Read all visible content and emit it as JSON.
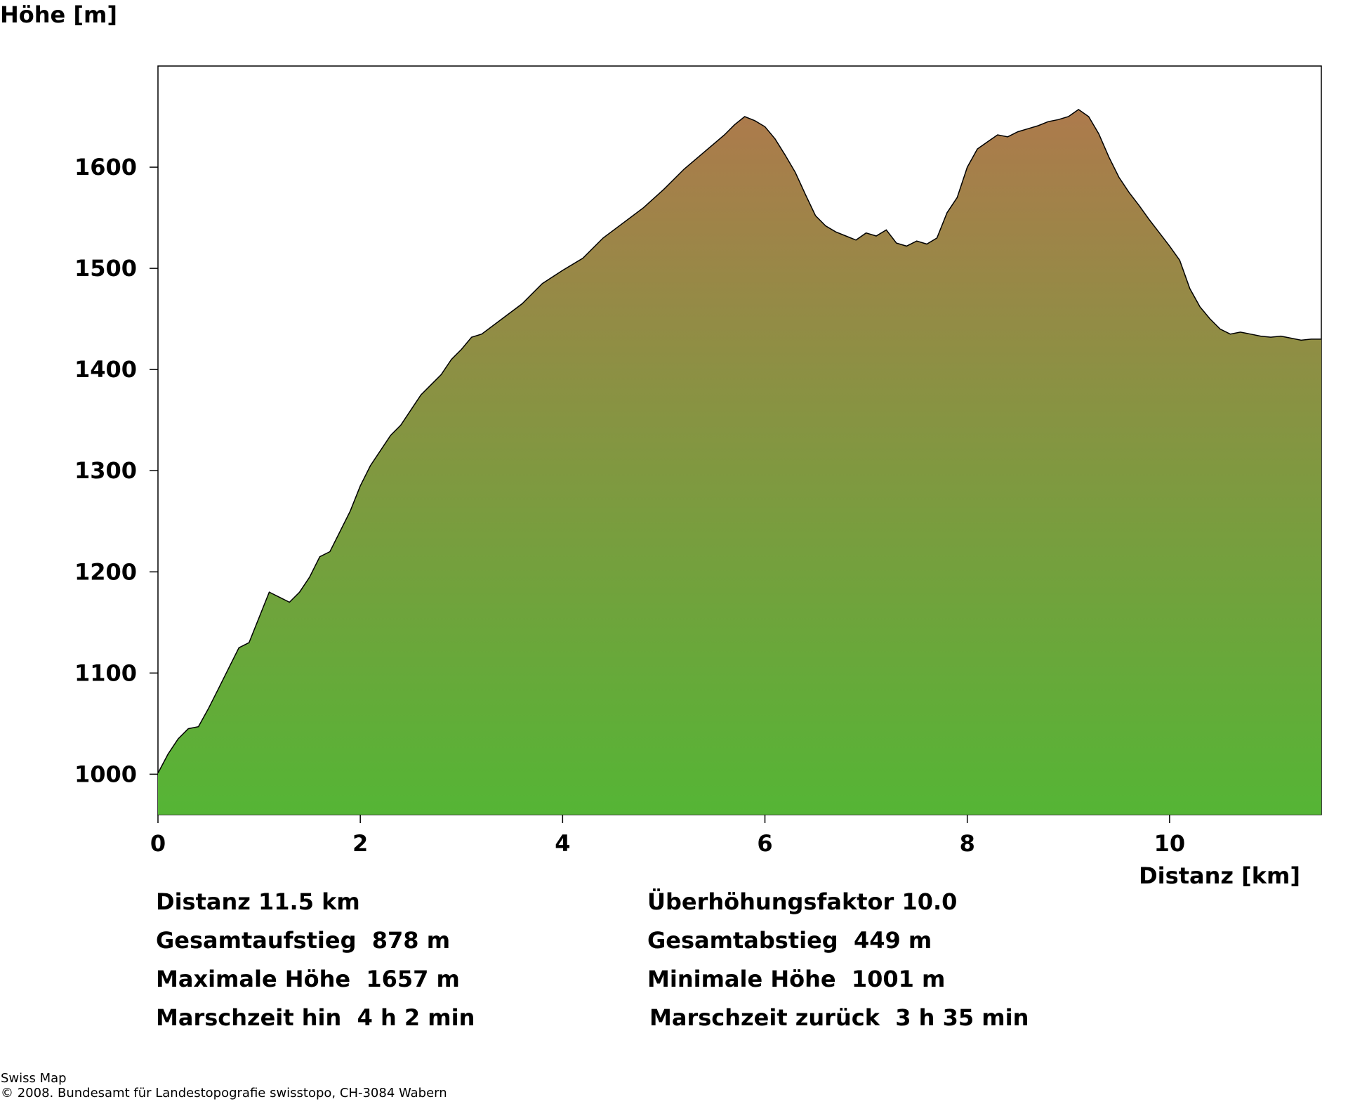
{
  "chart_data": {
    "type": "area",
    "ylabel": "Höhe [m]",
    "xlabel": "Distanz [km]",
    "xlim": [
      0,
      11.5
    ],
    "ylim": [
      960,
      1700
    ],
    "xticks": [
      0,
      2,
      4,
      6,
      8,
      10
    ],
    "yticks": [
      1000,
      1100,
      1200,
      1300,
      1400,
      1500,
      1600
    ],
    "grid": false,
    "legend": "none",
    "gradient_colors": {
      "top": "#ad7a4c",
      "bottom": "#55b535"
    },
    "x": [
      0,
      0.1,
      0.2,
      0.3,
      0.4,
      0.5,
      0.6,
      0.7,
      0.8,
      0.9,
      1.0,
      1.1,
      1.2,
      1.3,
      1.4,
      1.5,
      1.6,
      1.7,
      1.8,
      1.9,
      2.0,
      2.1,
      2.2,
      2.3,
      2.4,
      2.5,
      2.6,
      2.7,
      2.8,
      2.9,
      3.0,
      3.1,
      3.2,
      3.4,
      3.6,
      3.8,
      4.0,
      4.2,
      4.4,
      4.6,
      4.8,
      5.0,
      5.2,
      5.4,
      5.6,
      5.7,
      5.8,
      5.9,
      6.0,
      6.1,
      6.2,
      6.3,
      6.4,
      6.5,
      6.6,
      6.7,
      6.8,
      6.9,
      7.0,
      7.1,
      7.2,
      7.3,
      7.4,
      7.5,
      7.6,
      7.7,
      7.8,
      7.9,
      8.0,
      8.1,
      8.2,
      8.3,
      8.4,
      8.5,
      8.6,
      8.7,
      8.8,
      8.9,
      9.0,
      9.1,
      9.2,
      9.3,
      9.4,
      9.5,
      9.6,
      9.7,
      9.8,
      9.9,
      10.0,
      10.1,
      10.2,
      10.3,
      10.4,
      10.5,
      10.6,
      10.7,
      10.8,
      10.9,
      11.0,
      11.1,
      11.2,
      11.3,
      11.4,
      11.5
    ],
    "y": [
      1001,
      1020,
      1035,
      1045,
      1047,
      1065,
      1085,
      1105,
      1125,
      1130,
      1155,
      1180,
      1175,
      1170,
      1180,
      1195,
      1215,
      1220,
      1240,
      1260,
      1285,
      1305,
      1320,
      1335,
      1345,
      1360,
      1375,
      1385,
      1395,
      1410,
      1420,
      1432,
      1435,
      1450,
      1465,
      1485,
      1498,
      1510,
      1530,
      1545,
      1560,
      1578,
      1598,
      1615,
      1632,
      1642,
      1650,
      1646,
      1640,
      1628,
      1612,
      1595,
      1573,
      1552,
      1542,
      1536,
      1532,
      1528,
      1535,
      1532,
      1538,
      1525,
      1522,
      1527,
      1524,
      1530,
      1555,
      1570,
      1600,
      1618,
      1625,
      1632,
      1630,
      1635,
      1638,
      1641,
      1645,
      1647,
      1650,
      1657,
      1650,
      1633,
      1610,
      1590,
      1575,
      1562,
      1548,
      1535,
      1522,
      1508,
      1480,
      1462,
      1450,
      1440,
      1435,
      1437,
      1435,
      1433,
      1432,
      1433,
      1431,
      1429,
      1430,
      1430
    ]
  },
  "stats": {
    "distanz": "Distanz 11.5 km",
    "ueberhoehung": "Überhöhungsfaktor 10.0",
    "aufstieg": "Gesamtaufstieg  878 m",
    "abstieg": "Gesamtabstieg  449 m",
    "max_hoehe": "Maximale Höhe  1657 m",
    "min_hoehe": "Minimale Höhe  1001 m",
    "zeit_hin": "Marschzeit hin  4 h 2 min",
    "zeit_zurueck": "Marschzeit zurück  3 h 35 min"
  },
  "footer": {
    "line1": "Swiss Map",
    "line2": "© 2008. Bundesamt für Landestopografie swisstopo, CH-3084 Wabern"
  }
}
